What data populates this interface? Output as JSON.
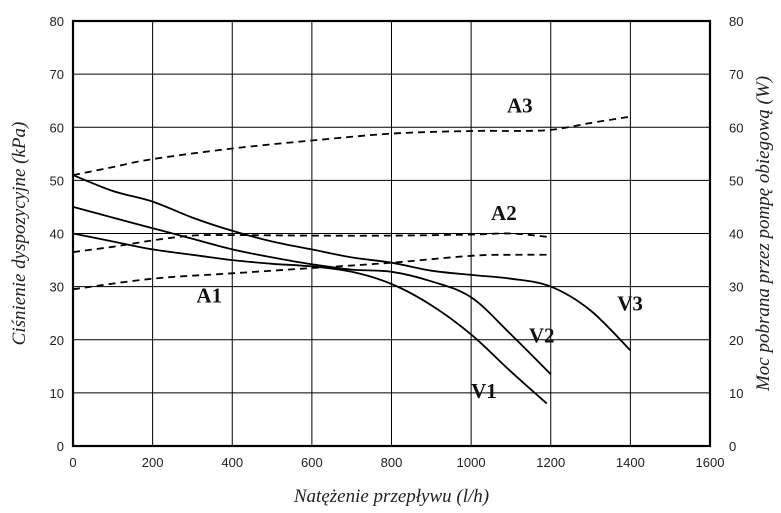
{
  "chart_data": {
    "type": "line",
    "xlabel": "Natężenie przepływu (l/h)",
    "ylabel_left": "Ciśnienie dyspozycyjne (kPa)",
    "ylabel_right": "Moc pobrana przez pompę obiegową (W)",
    "xlim": [
      0,
      1600
    ],
    "ylim": [
      0,
      80
    ],
    "x_ticks": [
      0,
      200,
      400,
      600,
      800,
      1000,
      1200,
      1400,
      1600
    ],
    "y_ticks": [
      0,
      10,
      20,
      30,
      40,
      50,
      60,
      70,
      80
    ],
    "grid": true,
    "series": [
      {
        "name": "V1",
        "axis": "left",
        "style": "solid",
        "points": [
          [
            0,
            40
          ],
          [
            100,
            38.5
          ],
          [
            200,
            37
          ],
          [
            300,
            36
          ],
          [
            400,
            35
          ],
          [
            500,
            34.3
          ],
          [
            600,
            33.8
          ],
          [
            700,
            32.8
          ],
          [
            800,
            30.5
          ],
          [
            900,
            26.5
          ],
          [
            1000,
            21
          ],
          [
            1100,
            14
          ],
          [
            1190,
            8
          ]
        ],
        "label_at": [
          1000,
          9
        ]
      },
      {
        "name": "V2",
        "axis": "left",
        "style": "solid",
        "points": [
          [
            0,
            45
          ],
          [
            100,
            43
          ],
          [
            200,
            41
          ],
          [
            300,
            39
          ],
          [
            400,
            37
          ],
          [
            500,
            35.5
          ],
          [
            600,
            34.2
          ],
          [
            700,
            33.2
          ],
          [
            800,
            32.8
          ],
          [
            900,
            31
          ],
          [
            1000,
            28
          ],
          [
            1100,
            21
          ],
          [
            1200,
            13.5
          ]
        ],
        "label_at": [
          1145,
          19.5
        ]
      },
      {
        "name": "V3",
        "axis": "left",
        "style": "solid",
        "points": [
          [
            0,
            51
          ],
          [
            100,
            48
          ],
          [
            200,
            46
          ],
          [
            300,
            43
          ],
          [
            400,
            40.5
          ],
          [
            500,
            38.5
          ],
          [
            600,
            37
          ],
          [
            700,
            35.5
          ],
          [
            800,
            34.5
          ],
          [
            900,
            33
          ],
          [
            1000,
            32.2
          ],
          [
            1100,
            31.5
          ],
          [
            1200,
            30
          ],
          [
            1300,
            25.5
          ],
          [
            1400,
            18
          ]
        ],
        "label_at": [
          1367,
          25.5
        ]
      },
      {
        "name": "A1",
        "axis": "right",
        "style": "dashed",
        "points": [
          [
            0,
            29.5
          ],
          [
            200,
            31.5
          ],
          [
            400,
            32.5
          ],
          [
            600,
            33.5
          ],
          [
            800,
            34.5
          ],
          [
            1000,
            35.8
          ],
          [
            1100,
            36
          ],
          [
            1200,
            36
          ]
        ],
        "label_at": [
          310,
          27
        ]
      },
      {
        "name": "A2",
        "axis": "right",
        "style": "dashed",
        "points": [
          [
            0,
            36.5
          ],
          [
            100,
            37.5
          ],
          [
            200,
            38.7
          ],
          [
            300,
            39.6
          ],
          [
            400,
            39.7
          ],
          [
            600,
            39.6
          ],
          [
            800,
            39.6
          ],
          [
            1000,
            39.8
          ],
          [
            1100,
            40
          ],
          [
            1200,
            39.3
          ]
        ],
        "label_at": [
          1050,
          42.5
        ]
      },
      {
        "name": "A3",
        "axis": "right",
        "style": "dashed",
        "points": [
          [
            0,
            51
          ],
          [
            100,
            52.5
          ],
          [
            200,
            54
          ],
          [
            400,
            56
          ],
          [
            600,
            57.5
          ],
          [
            800,
            58.8
          ],
          [
            1000,
            59.3
          ],
          [
            1100,
            59.3
          ],
          [
            1200,
            59.5
          ],
          [
            1300,
            60.8
          ],
          [
            1400,
            62
          ]
        ],
        "label_at": [
          1090,
          62.8
        ]
      }
    ]
  }
}
